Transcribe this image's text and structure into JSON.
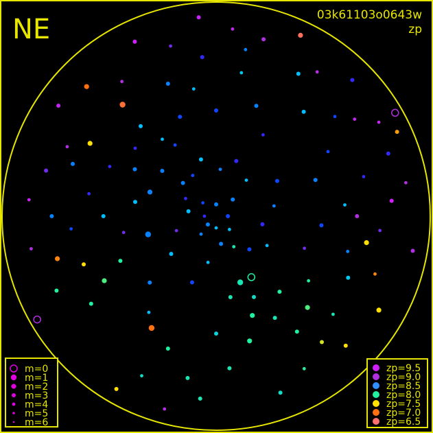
{
  "chart_data": {
    "type": "scatter",
    "title": "03k61103o0643w",
    "subtitle": "zp",
    "corner_label": "NE",
    "frame_color": "#e6e600",
    "mag_legend": [
      "m=0",
      "m=1",
      "m=2",
      "m=3",
      "m=4",
      "m=5",
      "m=6"
    ],
    "zp_legend": [
      {
        "label": "zp=9.5",
        "color": "#d020ff"
      },
      {
        "label": "zp=9.0",
        "color": "#b030e0"
      },
      {
        "label": "zp=8.5",
        "color": "#3090ff"
      },
      {
        "label": "zp=8.0",
        "color": "#20f0a0"
      },
      {
        "label": "zp=7.5",
        "color": "#ffe000"
      },
      {
        "label": "zp=7.0",
        "color": "#ff7010"
      },
      {
        "label": "zp=6.5",
        "color": "#ff7070"
      }
    ],
    "point_fields": [
      "azimuth_deg",
      "zenith_distance_deg",
      "m",
      "zp"
    ],
    "points": [
      [
        300,
        40,
        3,
        8.6
      ],
      [
        310,
        45,
        4,
        8.8
      ],
      [
        320,
        50,
        3,
        8.5
      ],
      [
        330,
        35,
        4,
        8.7
      ],
      [
        290,
        30,
        2,
        8.6
      ],
      [
        280,
        55,
        4,
        8.8
      ],
      [
        270,
        48,
        3,
        8.5
      ],
      [
        260,
        40,
        4,
        8.9
      ],
      [
        340,
        60,
        3,
        8.6
      ],
      [
        350,
        55,
        4,
        8.5
      ],
      [
        0,
        45,
        3,
        8.7
      ],
      [
        10,
        62,
        4,
        8.4
      ],
      [
        20,
        50,
        3,
        8.6
      ],
      [
        30,
        40,
        4,
        8.8
      ],
      [
        40,
        58,
        3,
        8.5
      ],
      [
        50,
        66,
        4,
        8.7
      ],
      [
        315,
        20,
        3,
        8.6
      ],
      [
        300,
        15,
        4,
        8.8
      ],
      [
        280,
        12,
        3,
        8.5
      ],
      [
        250,
        18,
        4,
        8.9
      ],
      [
        230,
        25,
        3,
        8.5
      ],
      [
        220,
        10,
        4,
        8.6
      ],
      [
        200,
        30,
        3,
        8.7
      ],
      [
        190,
        20,
        4,
        8.5
      ],
      [
        170,
        35,
        3,
        8.1
      ],
      [
        160,
        45,
        2,
        8.0
      ],
      [
        150,
        50,
        3,
        8.1
      ],
      [
        140,
        42,
        3,
        8.0
      ],
      [
        135,
        55,
        2,
        7.9
      ],
      [
        145,
        60,
        3,
        8.0
      ],
      [
        130,
        65,
        4,
        8.1
      ],
      [
        155,
        38,
        3,
        8.2
      ],
      [
        165,
        55,
        2,
        8.0
      ],
      [
        175,
        65,
        3,
        8.1
      ],
      [
        180,
        50,
        3,
        8.3
      ],
      [
        125,
        48,
        4,
        8.0
      ],
      [
        140,
        70,
        3,
        7.6
      ],
      [
        135,
        78,
        3,
        7.5
      ],
      [
        150,
        75,
        4,
        8.0
      ],
      [
        160,
        80,
        3,
        8.2
      ],
      [
        120,
        80,
        2,
        7.5
      ],
      [
        110,
        72,
        4,
        7.1
      ],
      [
        100,
        85,
        3,
        9.0
      ],
      [
        95,
        70,
        4,
        8.9
      ],
      [
        85,
        75,
        3,
        9.5
      ],
      [
        80,
        82,
        4,
        9.0
      ],
      [
        70,
        78,
        3,
        8.8
      ],
      [
        60,
        80,
        4,
        9.2
      ],
      [
        245,
        45,
        3,
        8.0
      ],
      [
        240,
        55,
        2,
        7.9
      ],
      [
        235,
        65,
        3,
        8.0
      ],
      [
        250,
        60,
        3,
        7.5
      ],
      [
        255,
        70,
        2,
        7.1
      ],
      [
        245,
        75,
        3,
        8.0
      ],
      [
        260,
        80,
        4,
        9.0
      ],
      [
        270,
        70,
        3,
        8.6
      ],
      [
        275,
        80,
        4,
        9.4
      ],
      [
        285,
        75,
        3,
        8.9
      ],
      [
        295,
        70,
        4,
        9.0
      ],
      [
        305,
        82,
        3,
        9.3
      ],
      [
        315,
        78,
        2,
        7.0
      ],
      [
        325,
        70,
        4,
        9.1
      ],
      [
        335,
        82,
        3,
        9.5
      ],
      [
        345,
        75,
        4,
        8.9
      ],
      [
        355,
        85,
        3,
        9.4
      ],
      [
        5,
        80,
        4,
        9.2
      ],
      [
        15,
        78,
        3,
        9.0
      ],
      [
        25,
        85,
        2,
        6.6
      ],
      [
        35,
        75,
        4,
        9.1
      ],
      [
        45,
        82,
        3,
        8.8
      ],
      [
        55,
        72,
        4,
        9.3
      ],
      [
        65,
        85,
        3,
        7.2
      ],
      [
        200,
        60,
        3,
        8.0
      ],
      [
        205,
        75,
        4,
        8.2
      ],
      [
        210,
        85,
        3,
        7.5
      ],
      [
        215,
        50,
        4,
        8.5
      ],
      [
        225,
        40,
        3,
        8.6
      ],
      [
        190,
        70,
        3,
        8.1
      ],
      [
        195,
        85,
        4,
        9.0
      ],
      [
        185,
        78,
        3,
        8.1
      ],
      [
        330,
        20,
        4,
        8.7
      ],
      [
        345,
        25,
        3,
        8.5
      ],
      [
        5,
        20,
        4,
        8.6
      ],
      [
        20,
        25,
        3,
        8.8
      ],
      [
        40,
        20,
        4,
        8.5
      ],
      [
        60,
        30,
        3,
        8.7
      ],
      [
        80,
        25,
        4,
        8.6
      ],
      [
        100,
        20,
        3,
        8.8
      ],
      [
        120,
        25,
        4,
        8.5
      ],
      [
        135,
        20,
        3,
        8.7
      ],
      [
        150,
        15,
        4,
        8.1
      ],
      [
        170,
        12,
        3,
        8.6
      ],
      [
        110,
        40,
        4,
        8.9
      ],
      [
        95,
        45,
        3,
        8.7
      ],
      [
        85,
        55,
        4,
        8.5
      ],
      [
        70,
        45,
        3,
        8.6
      ],
      [
        75,
        65,
        4,
        8.8
      ],
      [
        90,
        60,
        3,
        9.0
      ],
      [
        105,
        58,
        4,
        8.6
      ],
      [
        115,
        62,
        3,
        8.4
      ],
      [
        60,
        55,
        4,
        8.7
      ],
      [
        30,
        70,
        3,
        8.5
      ],
      [
        10,
        72,
        4,
        8.6
      ],
      [
        355,
        68,
        3,
        8.8
      ],
      [
        300,
        62,
        2,
        7.5
      ],
      [
        290,
        65,
        3,
        8.6
      ],
      [
        265,
        62,
        4,
        8.7
      ],
      [
        280,
        35,
        3,
        8.5
      ],
      [
        295,
        50,
        4,
        8.8
      ],
      [
        310,
        30,
        3,
        8.6
      ],
      [
        325,
        40,
        4,
        8.5
      ],
      [
        340,
        45,
        3,
        8.7
      ],
      [
        150,
        30,
        0,
        8.0
      ],
      [
        160,
        30,
        1,
        8.1
      ],
      [
        255,
        30,
        1,
        8.6
      ],
      [
        210,
        55,
        1,
        7.0
      ],
      [
        100,
        65,
        2,
        7.5
      ],
      [
        320,
        62,
        1,
        6.8
      ],
      [
        0,
        5,
        3,
        8.6
      ],
      [
        180,
        5,
        4,
        8.5
      ],
      [
        90,
        5,
        3,
        8.7
      ],
      [
        270,
        5,
        4,
        8.8
      ],
      [
        45,
        10,
        3,
        8.6
      ],
      [
        135,
        8,
        4,
        8.5
      ],
      [
        225,
        5,
        3,
        8.6
      ],
      [
        315,
        8,
        4,
        8.7
      ],
      [
        60,
        88,
        0,
        9.0
      ],
      [
        240,
        88,
        0,
        9.0
      ]
    ]
  }
}
